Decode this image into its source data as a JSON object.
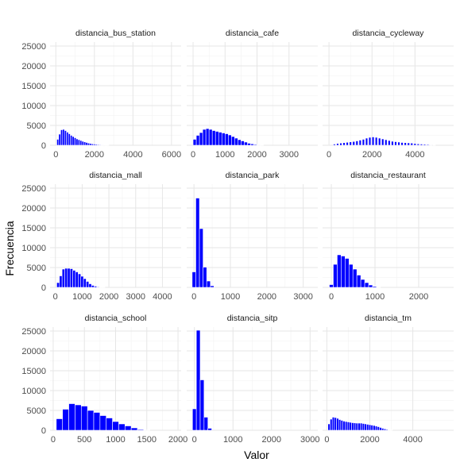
{
  "chart_data": {
    "type": "bar",
    "xlabel": "Valor",
    "ylabel": "Frecuencia",
    "bar_color": "#0000ff",
    "bar_outline_color": "#ffffff",
    "grid": true,
    "y_shared": true,
    "ylim": [
      0,
      26000
    ],
    "yticks": [
      0,
      5000,
      10000,
      15000,
      20000,
      25000
    ],
    "panels": [
      {
        "title": "distancia_bus_station",
        "xlim": [
          -300,
          6500
        ],
        "xticks": [
          0,
          2000,
          4000,
          6000
        ],
        "bar_width": 100,
        "x": [
          100,
          200,
          300,
          400,
          500,
          600,
          700,
          800,
          900,
          1000,
          1100,
          1200,
          1300,
          1400,
          1500,
          1600,
          1700,
          1800,
          1900,
          2000,
          2100,
          2200,
          2300,
          2400,
          2500,
          2600,
          2700
        ],
        "values": [
          1500,
          2800,
          3900,
          4000,
          3700,
          3300,
          2900,
          2500,
          2200,
          1900,
          1600,
          1400,
          1200,
          1000,
          850,
          700,
          550,
          450,
          350,
          300,
          230,
          180,
          140,
          110,
          80,
          60,
          40
        ]
      },
      {
        "title": "distancia_cafe",
        "xlim": [
          -200,
          3900
        ],
        "xticks": [
          0,
          1000,
          2000,
          3000
        ],
        "bar_width": 100,
        "x": [
          50,
          150,
          250,
          350,
          450,
          550,
          650,
          750,
          850,
          950,
          1050,
          1150,
          1250,
          1350,
          1450,
          1550,
          1650,
          1750,
          1850,
          1950,
          2050,
          2150
        ],
        "values": [
          1500,
          2500,
          3200,
          4000,
          4200,
          4000,
          3700,
          3500,
          3300,
          3100,
          2900,
          2600,
          2200,
          1800,
          1400,
          1100,
          800,
          500,
          350,
          200,
          120,
          60
        ]
      },
      {
        "title": "distancia_cycleway",
        "xlim": [
          -300,
          5800
        ],
        "xticks": [
          0,
          2000,
          4000
        ],
        "bar_width": 100,
        "x": [
          250,
          400,
          550,
          700,
          850,
          1000,
          1150,
          1300,
          1450,
          1600,
          1750,
          1900,
          2050,
          2200,
          2350,
          2500,
          2650,
          2800,
          2950,
          3100,
          3250,
          3400,
          3550,
          3700,
          3850,
          4000,
          4150,
          4300,
          4450,
          4600,
          4750,
          4900
        ],
        "values": [
          300,
          450,
          550,
          650,
          750,
          850,
          950,
          1100,
          1300,
          1500,
          1800,
          2000,
          2100,
          2000,
          1800,
          1600,
          1400,
          1200,
          1000,
          900,
          800,
          700,
          650,
          600,
          550,
          450,
          350,
          300,
          250,
          200,
          120,
          60
        ]
      },
      {
        "title": "distancia_mall",
        "xlim": [
          -200,
          4700
        ],
        "xticks": [
          0,
          1000,
          2000,
          3000,
          4000
        ],
        "bar_width": 100,
        "x": [
          100,
          200,
          300,
          400,
          500,
          600,
          700,
          800,
          900,
          1000,
          1100,
          1200,
          1300,
          1400,
          1500,
          1600,
          1700,
          1800
        ],
        "values": [
          1200,
          2900,
          4600,
          4800,
          4800,
          4700,
          4300,
          3900,
          3400,
          2800,
          2200,
          1500,
          900,
          500,
          300,
          150,
          80,
          40
        ]
      },
      {
        "title": "distancia_park",
        "xlim": [
          -200,
          3400
        ],
        "xticks": [
          0,
          1000,
          2000,
          3000
        ],
        "bar_width": 100,
        "x": [
          0,
          100,
          200,
          300,
          400,
          500
        ],
        "values": [
          3900,
          22500,
          14800,
          5100,
          1600,
          400
        ]
      },
      {
        "title": "distancia_restaurant",
        "xlim": [
          -200,
          2800
        ],
        "xticks": [
          0,
          1000,
          2000
        ],
        "bar_width": 90,
        "x": [
          0,
          90,
          180,
          270,
          360,
          450,
          540,
          630,
          720,
          810,
          900,
          990,
          1080
        ],
        "values": [
          700,
          5800,
          8200,
          7900,
          7300,
          5800,
          4600,
          3100,
          2000,
          1200,
          600,
          250,
          80
        ]
      },
      {
        "title": "distancia_school",
        "xlim": [
          -50,
          2050
        ],
        "xticks": [
          0,
          500,
          1000,
          1500,
          2000
        ],
        "bar_width": 100,
        "x": [
          100,
          200,
          300,
          400,
          500,
          600,
          700,
          800,
          900,
          1000,
          1100,
          1200,
          1300,
          1400,
          1500
        ],
        "values": [
          2900,
          5300,
          6700,
          6400,
          6100,
          5000,
          4500,
          3700,
          3100,
          2200,
          1600,
          1100,
          600,
          200,
          40
        ]
      },
      {
        "title": "distancia_sitp",
        "xlim": [
          -200,
          3200
        ],
        "xticks": [
          0,
          1000,
          2000,
          3000
        ],
        "bar_width": 100,
        "x": [
          0,
          100,
          200,
          300,
          400
        ],
        "values": [
          5400,
          25200,
          12700,
          3300,
          500
        ]
      },
      {
        "title": "distancia_tm",
        "xlim": [
          -200,
          5900
        ],
        "xticks": [
          0,
          2000,
          4000
        ],
        "bar_width": 100,
        "x": [
          100,
          200,
          300,
          400,
          500,
          600,
          700,
          800,
          900,
          1000,
          1100,
          1200,
          1300,
          1400,
          1500,
          1600,
          1700,
          1800,
          1900,
          2000,
          2100,
          2200,
          2300,
          2400,
          2500,
          2600,
          2700,
          2800,
          2900,
          3000
        ],
        "values": [
          1600,
          2800,
          3300,
          3200,
          3000,
          2700,
          2500,
          2300,
          2200,
          2100,
          2000,
          1900,
          1850,
          1800,
          1800,
          1800,
          1700,
          1600,
          1500,
          1400,
          1300,
          1200,
          1050,
          900,
          700,
          500,
          350,
          200,
          100,
          50
        ]
      }
    ]
  }
}
